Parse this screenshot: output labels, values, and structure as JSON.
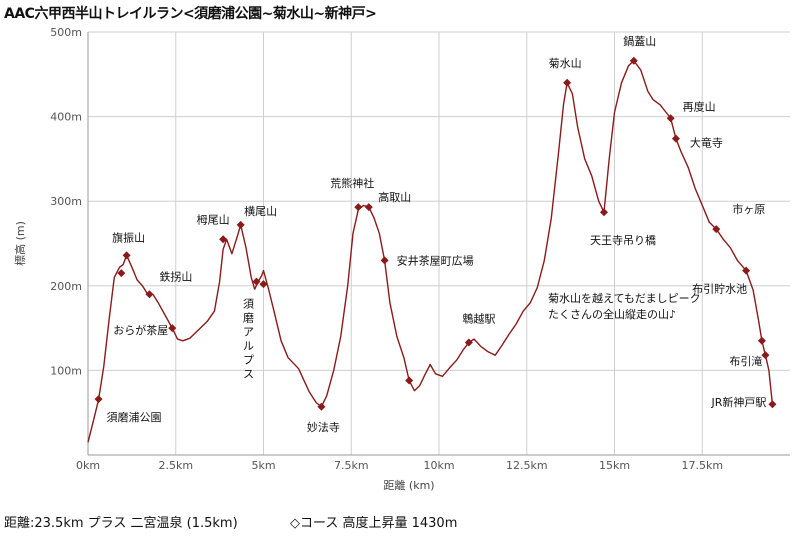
{
  "title": "AAC六甲西半山トレイルラン<須磨浦公園~菊水山~新神戸>",
  "footer": {
    "distance": "距離:23.5km プラス 二宮温泉 (1.5km)",
    "course": "◇コース 高度上昇量 1430m"
  },
  "chart_data": {
    "type": "line",
    "xlabel": "距離 (km)",
    "ylabel": "標高 (m)",
    "xlim": [
      0,
      20
    ],
    "ylim": [
      0,
      500
    ],
    "x_ticks": [
      0,
      2.5,
      5,
      7.5,
      10,
      12.5,
      15,
      17.5
    ],
    "x_tick_labels": [
      "0km",
      "2.5km",
      "5km",
      "7.5km",
      "10km",
      "12.5km",
      "15km",
      "17.5km"
    ],
    "y_ticks": [
      100,
      200,
      300,
      400,
      500
    ],
    "y_tick_labels": [
      "100m",
      "200m",
      "300m",
      "400m",
      "500m"
    ],
    "grid": true,
    "line_color": "#8b1a1a",
    "marker_color": "#8b1a1a",
    "series": [
      {
        "values": [
          [
            0.0,
            15
          ],
          [
            0.15,
            40
          ],
          [
            0.3,
            65
          ],
          [
            0.45,
            105
          ],
          [
            0.6,
            160
          ],
          [
            0.75,
            210
          ],
          [
            0.9,
            222
          ],
          [
            1.0,
            225
          ],
          [
            1.1,
            236
          ],
          [
            1.25,
            222
          ],
          [
            1.4,
            207
          ],
          [
            1.55,
            200
          ],
          [
            1.7,
            190
          ],
          [
            1.85,
            190
          ],
          [
            2.0,
            180
          ],
          [
            2.2,
            165
          ],
          [
            2.4,
            150
          ],
          [
            2.55,
            137
          ],
          [
            2.7,
            135
          ],
          [
            2.9,
            138
          ],
          [
            3.2,
            150
          ],
          [
            3.4,
            158
          ],
          [
            3.6,
            170
          ],
          [
            3.75,
            205
          ],
          [
            3.85,
            243
          ],
          [
            3.95,
            255
          ],
          [
            4.1,
            238
          ],
          [
            4.25,
            258
          ],
          [
            4.35,
            272
          ],
          [
            4.5,
            245
          ],
          [
            4.65,
            210
          ],
          [
            4.75,
            196
          ],
          [
            4.85,
            205
          ],
          [
            4.95,
            212
          ],
          [
            5.0,
            218
          ],
          [
            5.15,
            195
          ],
          [
            5.3,
            170
          ],
          [
            5.5,
            135
          ],
          [
            5.7,
            115
          ],
          [
            6.0,
            102
          ],
          [
            6.3,
            75
          ],
          [
            6.5,
            62
          ],
          [
            6.65,
            57
          ],
          [
            6.8,
            70
          ],
          [
            7.0,
            100
          ],
          [
            7.2,
            140
          ],
          [
            7.4,
            200
          ],
          [
            7.55,
            262
          ],
          [
            7.7,
            290
          ],
          [
            7.85,
            295
          ],
          [
            8.0,
            293
          ],
          [
            8.15,
            280
          ],
          [
            8.3,
            262
          ],
          [
            8.45,
            230
          ],
          [
            8.6,
            180
          ],
          [
            8.8,
            140
          ],
          [
            9.0,
            115
          ],
          [
            9.15,
            88
          ],
          [
            9.3,
            76
          ],
          [
            9.45,
            82
          ],
          [
            9.6,
            95
          ],
          [
            9.75,
            107
          ],
          [
            9.9,
            96
          ],
          [
            10.1,
            93
          ],
          [
            10.3,
            103
          ],
          [
            10.5,
            112
          ],
          [
            10.7,
            125
          ],
          [
            10.85,
            133
          ],
          [
            11.0,
            137
          ],
          [
            11.2,
            128
          ],
          [
            11.4,
            122
          ],
          [
            11.6,
            118
          ],
          [
            11.8,
            130
          ],
          [
            12.0,
            143
          ],
          [
            12.2,
            155
          ],
          [
            12.4,
            170
          ],
          [
            12.6,
            180
          ],
          [
            12.8,
            198
          ],
          [
            13.0,
            230
          ],
          [
            13.2,
            280
          ],
          [
            13.4,
            355
          ],
          [
            13.55,
            415
          ],
          [
            13.65,
            440
          ],
          [
            13.8,
            427
          ],
          [
            13.95,
            388
          ],
          [
            14.15,
            350
          ],
          [
            14.35,
            330
          ],
          [
            14.55,
            300
          ],
          [
            14.7,
            287
          ],
          [
            14.85,
            350
          ],
          [
            15.0,
            405
          ],
          [
            15.2,
            440
          ],
          [
            15.4,
            460
          ],
          [
            15.55,
            466
          ],
          [
            15.75,
            455
          ],
          [
            15.95,
            430
          ],
          [
            16.1,
            420
          ],
          [
            16.3,
            414
          ],
          [
            16.45,
            406
          ],
          [
            16.6,
            398
          ],
          [
            16.75,
            374
          ],
          [
            16.9,
            358
          ],
          [
            17.1,
            340
          ],
          [
            17.3,
            315
          ],
          [
            17.5,
            295
          ],
          [
            17.7,
            275
          ],
          [
            17.9,
            267
          ],
          [
            18.1,
            255
          ],
          [
            18.3,
            245
          ],
          [
            18.5,
            230
          ],
          [
            18.75,
            218
          ],
          [
            18.95,
            195
          ],
          [
            19.1,
            160
          ],
          [
            19.2,
            135
          ],
          [
            19.3,
            118
          ],
          [
            19.4,
            100
          ],
          [
            19.5,
            60
          ]
        ]
      }
    ],
    "markers": [
      {
        "x": 0.3,
        "y": 66,
        "label": "須磨浦公園"
      },
      {
        "x": 1.1,
        "y": 236,
        "label": "旗振山"
      },
      {
        "x": 0.95,
        "y": 215,
        "label": ""
      },
      {
        "x": 1.75,
        "y": 190,
        "label": "鉄拐山"
      },
      {
        "x": 2.4,
        "y": 150,
        "label": "おらが茶屋"
      },
      {
        "x": 3.85,
        "y": 255,
        "label": "栂尾山"
      },
      {
        "x": 4.35,
        "y": 272,
        "label": "横尾山"
      },
      {
        "x": 4.8,
        "y": 205,
        "label": "須磨アルプス"
      },
      {
        "x": 5.0,
        "y": 202,
        "label": ""
      },
      {
        "x": 6.65,
        "y": 57,
        "label": "妙法寺"
      },
      {
        "x": 7.7,
        "y": 293,
        "label": "荒熊神社"
      },
      {
        "x": 8.0,
        "y": 293,
        "label": "高取山"
      },
      {
        "x": 8.45,
        "y": 230,
        "label": "安井茶屋町広場"
      },
      {
        "x": 9.15,
        "y": 88,
        "label": ""
      },
      {
        "x": 10.85,
        "y": 133,
        "label": "鵯越駅"
      },
      {
        "x": 13.65,
        "y": 440,
        "label": "菊水山"
      },
      {
        "x": 14.7,
        "y": 287,
        "label": "天王寺吊り橋"
      },
      {
        "x": 15.55,
        "y": 466,
        "label": "鍋蓋山"
      },
      {
        "x": 16.6,
        "y": 398,
        "label": "再度山"
      },
      {
        "x": 16.75,
        "y": 374,
        "label": "大竜寺"
      },
      {
        "x": 17.9,
        "y": 267,
        "label": "市ヶ原"
      },
      {
        "x": 18.75,
        "y": 218,
        "label": "布引貯水池"
      },
      {
        "x": 19.2,
        "y": 135,
        "label": ""
      },
      {
        "x": 19.3,
        "y": 118,
        "label": "布引滝"
      },
      {
        "x": 19.5,
        "y": 60,
        "label": "JR新神戸駅"
      }
    ],
    "annotation": "菊水山を越えてもだましピーク\nたくさんの全山縦走の山♪"
  }
}
